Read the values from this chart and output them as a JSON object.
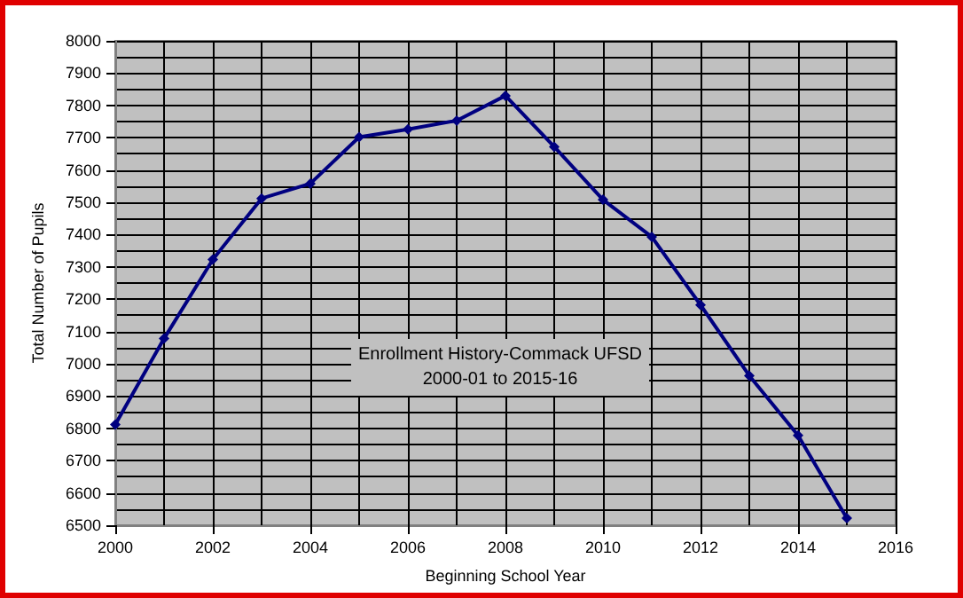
{
  "chart_data": {
    "type": "line",
    "title": "Enrollment History-Commack UFSD\n2000-01 to 2015-16",
    "xlabel": "Beginning School Year",
    "ylabel": "Total Number of Pupils",
    "x": [
      2000,
      2001,
      2002,
      2003,
      2004,
      2005,
      2006,
      2007,
      2008,
      2009,
      2010,
      2011,
      2012,
      2013,
      2014,
      2015
    ],
    "series": [
      {
        "color": "#000080",
        "values": [
          6812,
          7078,
          7323,
          7512,
          7558,
          7702,
          7726,
          7753,
          7830,
          7672,
          7508,
          7393,
          7182,
          6963,
          6778,
          6522
        ]
      }
    ],
    "xlim": [
      2000,
      2016
    ],
    "xticks": [
      2000,
      {
        "value": 2001,
        "label": null
      },
      2002,
      {
        "value": 2003,
        "label": null
      },
      2004,
      {
        "value": 2005,
        "label": null
      },
      2006,
      {
        "value": 2007,
        "label": null
      },
      2008,
      {
        "value": 2009,
        "label": null
      },
      2010,
      {
        "value": 2011,
        "label": null
      },
      2012,
      {
        "value": 2013,
        "label": null
      },
      2014,
      {
        "value": 2015,
        "label": null
      },
      2016
    ],
    "ylim": [
      6500,
      8000
    ],
    "yticks": [
      6500,
      {
        "value": 6550,
        "label": null
      },
      6600,
      {
        "value": 6650,
        "label": null
      },
      6700,
      {
        "value": 6750,
        "label": null
      },
      6800,
      {
        "value": 6850,
        "label": null
      },
      6900,
      {
        "value": 6950,
        "label": null
      },
      7000,
      {
        "value": 7050,
        "label": null
      },
      7100,
      {
        "value": 7150,
        "label": null
      },
      7200,
      {
        "value": 7250,
        "label": null
      },
      7300,
      {
        "value": 7350,
        "label": null
      },
      7400,
      {
        "value": 7450,
        "label": null
      },
      7500,
      {
        "value": 7550,
        "label": null
      },
      7600,
      {
        "value": 7650,
        "label": null
      },
      7700,
      {
        "value": 7750,
        "label": null
      },
      7800,
      {
        "value": 7850,
        "label": null
      },
      7900,
      {
        "value": 7950,
        "label": null
      },
      8000
    ],
    "grid": true,
    "marker": "diamond",
    "line_style": "solid"
  }
}
